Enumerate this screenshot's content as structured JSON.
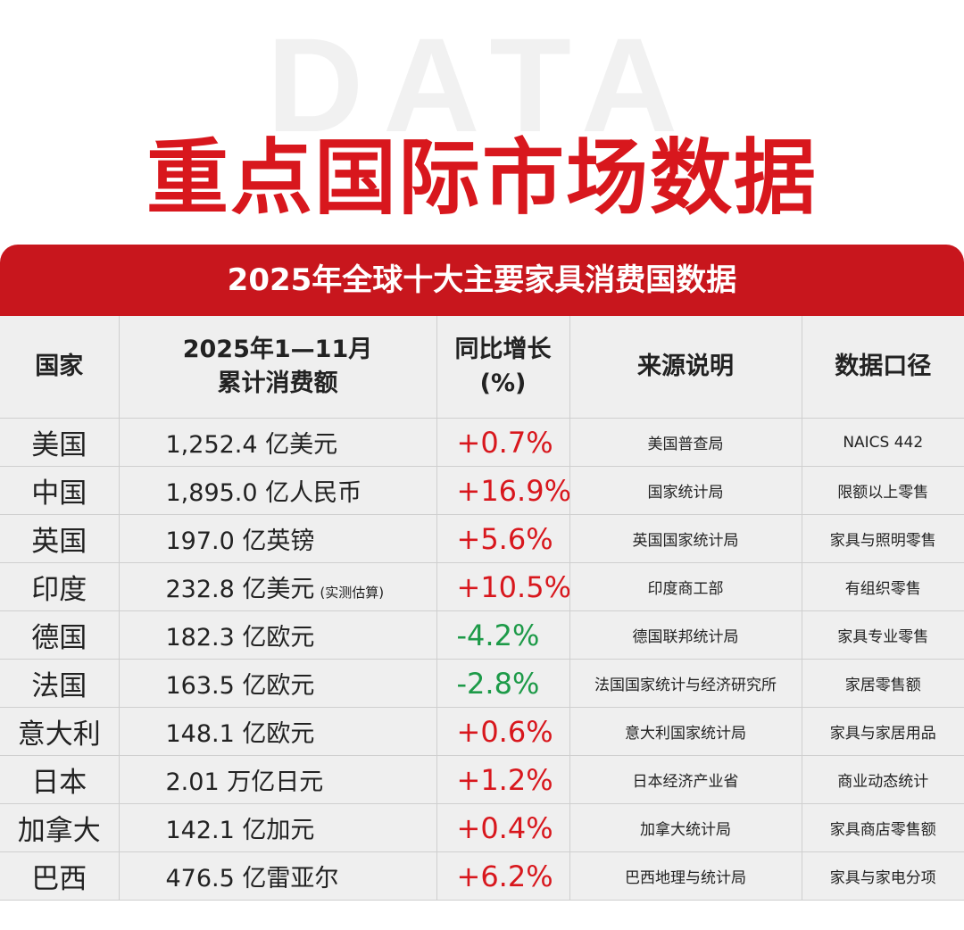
{
  "watermark": "DATA",
  "title": "重点国际市场数据",
  "subtitle": "2025年全球十大主要家具消费国数据",
  "colors": {
    "accent": "#d8171d",
    "banner": "#c8161d",
    "positive": "#d8171d",
    "negative": "#1d9a48"
  },
  "table": {
    "headers": {
      "country": "国家",
      "value_line1": "2025年1—11月",
      "value_line2": "累计消费额",
      "growth_line1": "同比增长",
      "growth_line2": "(%)",
      "source": "来源说明",
      "scope": "数据口径"
    },
    "rows": [
      {
        "country": "美国",
        "value": "1,252.4 亿美元",
        "note": "",
        "growth": "+0.7%",
        "source": "美国普查局",
        "scope": "NAICS 442"
      },
      {
        "country": "中国",
        "value": "1,895.0 亿人民币",
        "note": "",
        "growth": "+16.9%",
        "source": "国家统计局",
        "scope": "限额以上零售"
      },
      {
        "country": "英国",
        "value": "197.0 亿英镑",
        "note": "",
        "growth": "+5.6%",
        "source": "英国国家统计局",
        "scope": "家具与照明零售"
      },
      {
        "country": "印度",
        "value": "232.8 亿美元",
        "note": "(实测估算)",
        "growth": "+10.5%",
        "source": "印度商工部",
        "scope": "有组织零售"
      },
      {
        "country": "德国",
        "value": "182.3 亿欧元",
        "note": "",
        "growth": "-4.2%",
        "source": "德国联邦统计局",
        "scope": "家具专业零售"
      },
      {
        "country": "法国",
        "value": "163.5 亿欧元",
        "note": "",
        "growth": "-2.8%",
        "source": "法国国家统计与经济研究所",
        "scope": "家居零售额"
      },
      {
        "country": "意大利",
        "value": "148.1 亿欧元",
        "note": "",
        "growth": "+0.6%",
        "source": "意大利国家统计局",
        "scope": "家具与家居用品"
      },
      {
        "country": "日本",
        "value": "2.01 万亿日元",
        "note": "",
        "growth": "+1.2%",
        "source": "日本经济产业省",
        "scope": "商业动态统计"
      },
      {
        "country": "加拿大",
        "value": "142.1 亿加元",
        "note": "",
        "growth": "+0.4%",
        "source": "加拿大统计局",
        "scope": "家具商店零售额"
      },
      {
        "country": "巴西",
        "value": "476.5 亿雷亚尔",
        "note": "",
        "growth": "+6.2%",
        "source": "巴西地理与统计局",
        "scope": "家具与家电分项"
      }
    ]
  }
}
